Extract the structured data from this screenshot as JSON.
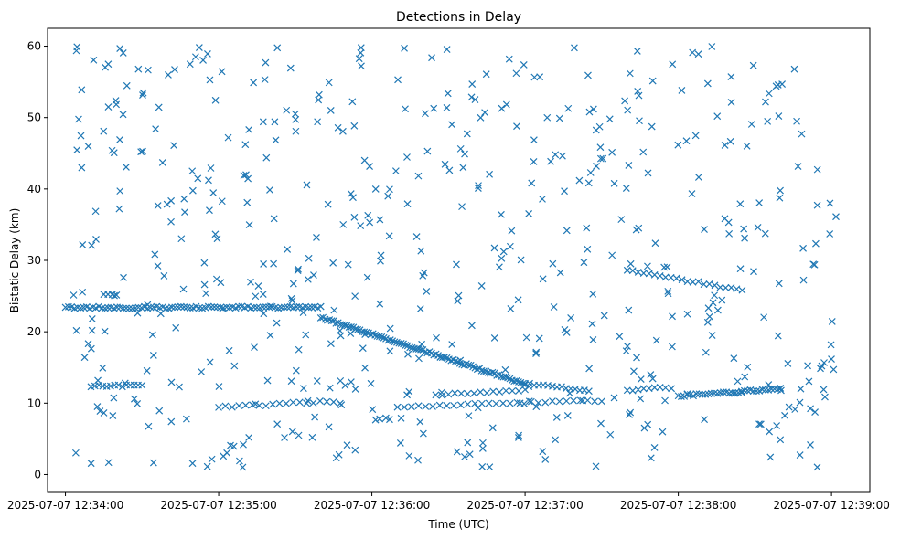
{
  "chart_data": {
    "type": "scatter",
    "title": "Detections in Delay",
    "xlabel": "Time (UTC)",
    "ylabel": "Bistatic Delay (km)",
    "marker": "x",
    "color": "#1f77b4",
    "grid": false,
    "xlim": [
      "2025-07-07 12:33:53",
      "2025-07-07 12:39:15"
    ],
    "ylim": [
      -2.5,
      62.5
    ],
    "xticks": [
      "2025-07-07 12:34:00",
      "2025-07-07 12:35:00",
      "2025-07-07 12:36:00",
      "2025-07-07 12:37:00",
      "2025-07-07 12:38:00",
      "2025-07-07 12:39:00"
    ],
    "yticks": [
      0,
      10,
      20,
      30,
      40,
      50,
      60
    ],
    "tracks": [
      {
        "start": "2025-07-07 12:34:00",
        "end": "2025-07-07 12:35:40",
        "y_start": 23.4,
        "y_end": 23.4,
        "count": 85
      },
      {
        "start": "2025-07-07 12:35:40",
        "end": "2025-07-07 12:37:00",
        "y_start": 22.0,
        "y_end": 12.7,
        "count": 95
      },
      {
        "start": "2025-07-07 12:37:00",
        "end": "2025-07-07 12:37:25",
        "y_start": 12.7,
        "y_end": 11.8,
        "count": 15
      },
      {
        "start": "2025-07-07 12:34:10",
        "end": "2025-07-07 12:34:30",
        "y_start": 12.4,
        "y_end": 12.4,
        "count": 14
      },
      {
        "start": "2025-07-07 12:35:00",
        "end": "2025-07-07 12:35:45",
        "y_start": 9.4,
        "y_end": 10.3,
        "count": 18
      },
      {
        "start": "2025-07-07 12:36:10",
        "end": "2025-07-07 12:37:30",
        "y_start": 9.5,
        "y_end": 10.4,
        "count": 30
      },
      {
        "start": "2025-07-07 12:36:25",
        "end": "2025-07-07 12:37:00",
        "y_start": 11.1,
        "y_end": 11.9,
        "count": 15
      },
      {
        "start": "2025-07-07 12:37:40",
        "end": "2025-07-07 12:37:55",
        "y_start": 11.8,
        "y_end": 12.2,
        "count": 8
      },
      {
        "start": "2025-07-07 12:38:00",
        "end": "2025-07-07 12:38:40",
        "y_start": 11.0,
        "y_end": 12.0,
        "count": 35
      },
      {
        "start": "2025-07-07 12:37:40",
        "end": "2025-07-07 12:38:25",
        "y_start": 28.7,
        "y_end": 25.8,
        "count": 22
      },
      {
        "start": "2025-07-07 12:34:15",
        "end": "2025-07-07 12:34:20",
        "y_start": 25.2,
        "y_end": 25.2,
        "count": 4
      }
    ],
    "clutter": {
      "count": 560,
      "seed": 7,
      "x_range": [
        "2025-07-07 12:34:02",
        "2025-07-07 12:39:02"
      ],
      "y_range": [
        1,
        60
      ]
    }
  }
}
